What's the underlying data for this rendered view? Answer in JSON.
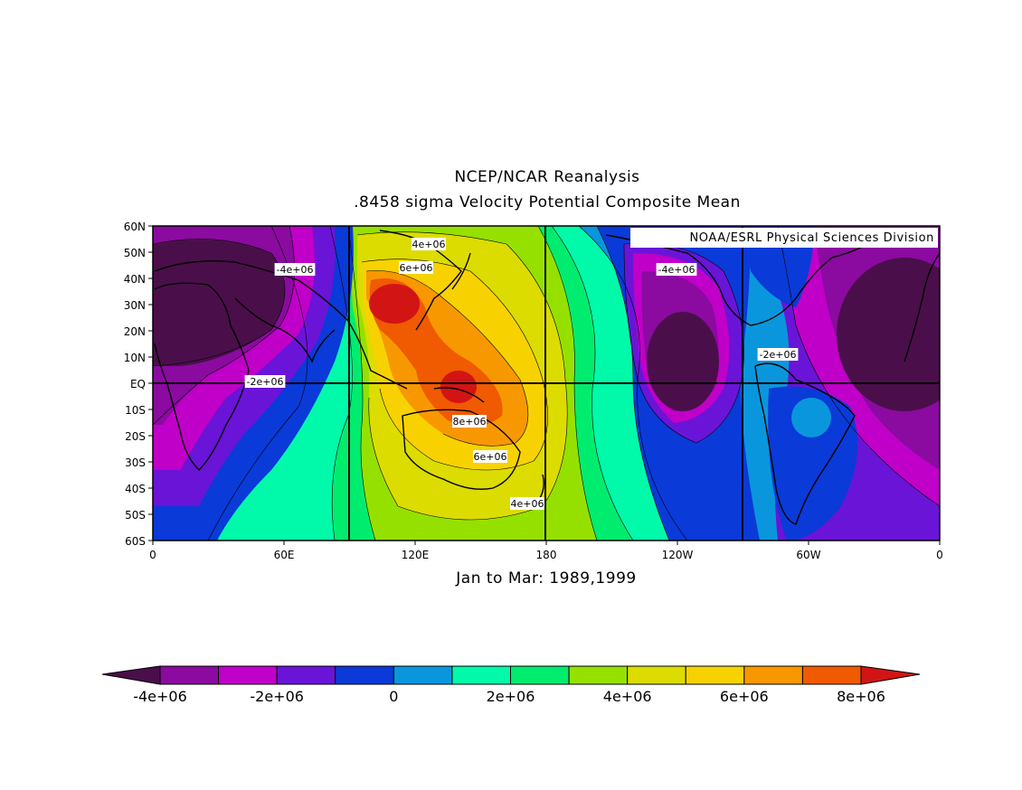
{
  "title_line1": "NCEP/NCAR Reanalysis",
  "title_line2": ".8458 sigma Velocity Potential  Composite Mean",
  "subtitle": "Jan to Mar: 1989,1999",
  "credit": "NOAA/ESRL Physical Sciences Division",
  "lat_ticks": [
    "60N",
    "50N",
    "40N",
    "30N",
    "20N",
    "10N",
    "EQ",
    "10S",
    "20S",
    "30S",
    "40S",
    "50S",
    "60S"
  ],
  "lon_ticks": [
    "0",
    "60E",
    "120E",
    "180",
    "120W",
    "60W",
    "0"
  ],
  "contour_labels": [
    "4e+06",
    "6e+06",
    "-4e+06",
    "-4e+06",
    "-2e+06",
    "-2e+06",
    "8e+06",
    "6e+06",
    "4e+06"
  ],
  "colorbar": {
    "labels": [
      "-4e+06",
      "-2e+06",
      "0",
      "2e+06",
      "4e+06",
      "6e+06",
      "8e+06"
    ],
    "colors": [
      "#4a0f4a",
      "#8b0aa0",
      "#c000c8",
      "#6a14d8",
      "#0a3ad8",
      "#0a96dc",
      "#00faaa",
      "#00ec6e",
      "#96e000",
      "#dcdc00",
      "#f8d200",
      "#f89800",
      "#f05a00",
      "#d21414"
    ]
  },
  "map_data": {
    "lat_range": [
      -60,
      60
    ],
    "lon_range": [
      0,
      360
    ],
    "variable": "Velocity Potential",
    "level": ".8458 sigma",
    "centers": [
      {
        "lon": 110,
        "lat": 30,
        "value": 9000000
      },
      {
        "lon": 138,
        "lat": -2,
        "value": 9000000
      },
      {
        "lon": 30,
        "lat": 30,
        "value": -5000000
      },
      {
        "lon": 255,
        "lat": 10,
        "value": -5000000
      },
      {
        "lon": 350,
        "lat": 15,
        "value": -5000000
      },
      {
        "lon": 302,
        "lat": -13,
        "value": 1000000
      }
    ]
  }
}
